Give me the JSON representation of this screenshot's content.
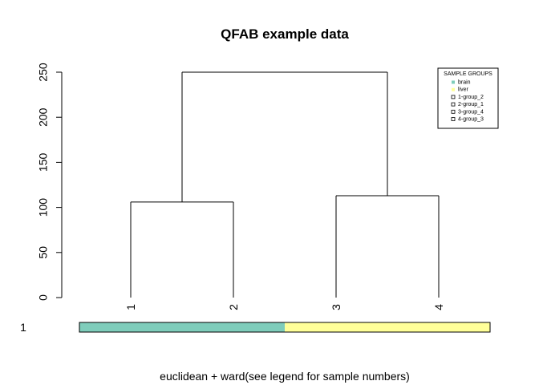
{
  "chart_data": {
    "type": "dendrogram",
    "title": "QFAB example data",
    "xlabel": "euclidean + ward(see legend for sample numbers)",
    "ylim": [
      0,
      250
    ],
    "yticks": [
      "0",
      "50",
      "100",
      "150",
      "200",
      "250"
    ],
    "leaves": [
      "1",
      "2",
      "3",
      "4"
    ],
    "merges": [
      {
        "left": "1",
        "right": "2",
        "height": 106
      },
      {
        "left": "3",
        "right": "4",
        "height": 113
      },
      {
        "left": "1-2",
        "right": "3-4",
        "height": 250
      }
    ],
    "color_bar": {
      "row_label": "1",
      "segments": [
        {
          "group": "brain",
          "color": "#7fcdbb",
          "leaves": [
            "1",
            "2"
          ]
        },
        {
          "group": "liver",
          "color": "#ffff99",
          "leaves": [
            "3",
            "4"
          ]
        }
      ]
    },
    "legend": {
      "title": "SAMPLE GROUPS",
      "position": "top-right",
      "items": [
        {
          "label": "brain",
          "kind": "fill",
          "color": "#7fcdbb"
        },
        {
          "label": "liver",
          "kind": "fill",
          "color": "#ffff99"
        },
        {
          "label": "1-group_2",
          "kind": "box"
        },
        {
          "label": "2-group_1",
          "kind": "box"
        },
        {
          "label": "3-group_4",
          "kind": "box"
        },
        {
          "label": "4-group_3",
          "kind": "box"
        }
      ]
    }
  }
}
